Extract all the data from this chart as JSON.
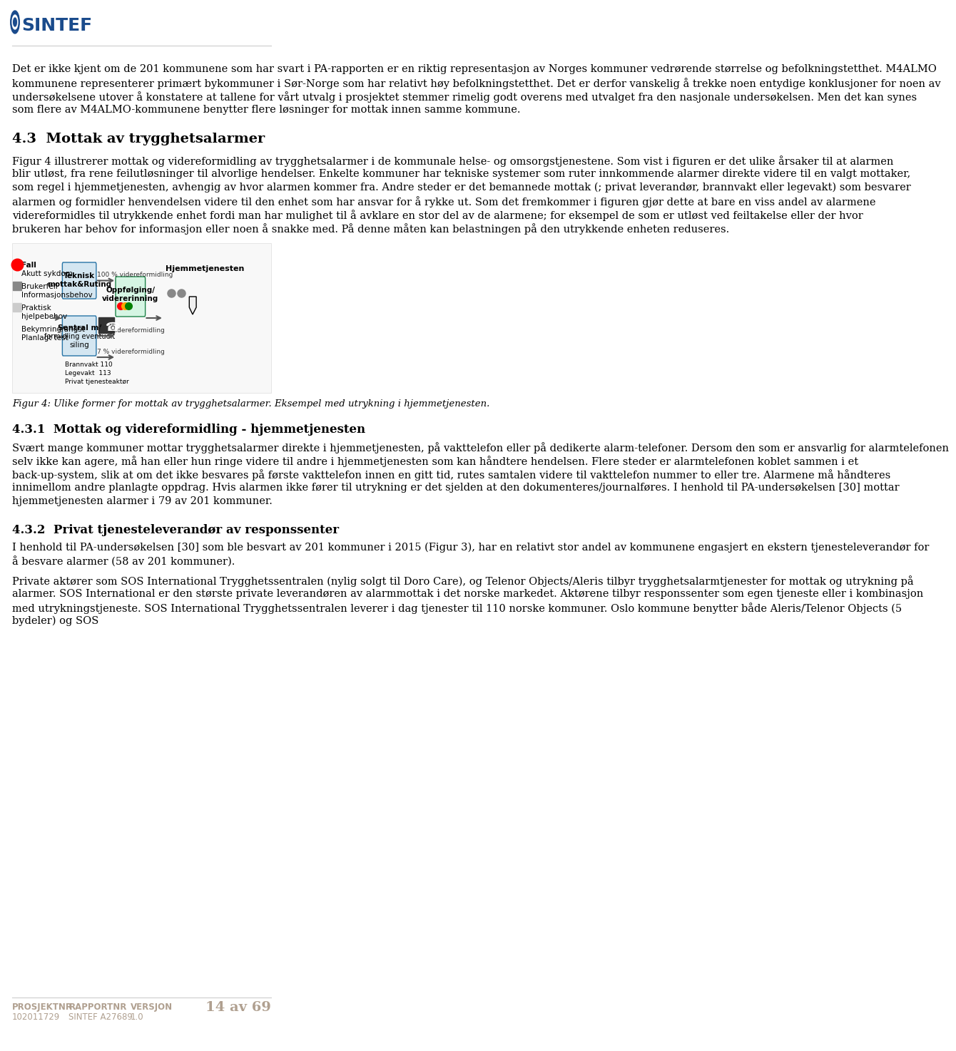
{
  "page_bg": "#ffffff",
  "sintef_color": "#1a4b8c",
  "text_color": "#000000",
  "footer_text_color": "#b0a090",
  "header_logo_text": "SINTEF",
  "footer_left_label": "PROSJEKTNR",
  "footer_left_value": "102011729",
  "footer_mid_label": "RAPPORTNR",
  "footer_mid_value": "SINTEF A27689",
  "footer_right_label": "VERSJON",
  "footer_right_value": "1.0",
  "footer_page": "14 av 69",
  "paragraph1": "Det er ikke kjent om de 201 kommunene som har svart i PA-rapporten er en riktig representasjon av Norges kommuner vedrørende størrelse og befolkningstetthet. M4ALMO kommunene representerer primært bykommuner i Sør-Norge som har relativt høy befolkningstetthet. Det er derfor vanskelig å trekke noen entydige konklusjoner for noen av undersøkelsene utover å konstatere at tallene for vårt utvalg i prosjektet stemmer rimelig godt overens med utvalget fra den nasjonale undersøkelsen. Men det kan synes som flere av M4ALMO-kommunene benytter flere løsninger for mottak innen samme kommune.",
  "heading2": "4.3  Mottak av trygghetsalarmer",
  "paragraph2": "Figur 4 illustrerer mottak og videreformidling av trygghetsalarmer i de kommunale helse- og omsorgstjenestene. Som vist i figuren er det ulike årsaker til at alarmen blir utløst, fra rene feilutløsninger til alvorlige hendelser. Enkelte kommuner har tekniske systemer som ruter innkommende alarmer direkte videre til en valgt mottaker, som regel i hjemmetjenesten, avhengig av hvor alarmen kommer fra. Andre steder er det bemannede mottak (; privat leverandør, brannvakt eller legevakt) som besvarer alarmen og formidler henvendelsen videre til den enhet som har ansvar for å rykke ut. Som det fremkommer i figuren gjør dette at bare en viss andel av alarmene videreformidles til utrykkende enhet fordi man har mulighet til å avklare en stor del av de alarmene; for eksempel de som er utløst ved feiltakelse eller der hvor brukeren har behov for informasjon eller noen å snakke med. På denne måten kan belastningen på den utrykkende enheten reduseres.",
  "fig_caption": "Figur 4: Ulike former for mottak av trygghetsalarmer. Eksempel med utrykning i hjemmetjenesten.",
  "heading3": "4.3.1  Mottak og videreformidling - hjemmetjenesten",
  "paragraph3": "Svært mange kommuner mottar trygghetsalarmer direkte i hjemmetjenesten, på vakttelefon eller på dedikerte alarm-telefoner. Dersom den som er ansvarlig for alarmtelefonen selv ikke kan agere, må han eller hun ringe videre til andre i hjemmetjenesten som kan håndtere hendelsen. Flere steder er alarmtelefonen koblet sammen i et back-up-system, slik at om det ikke besvares på første vakttelefon innen en gitt tid, rutes samtalen videre til vakttelefon nummer to eller tre. Alarmene må håndteres innimellom andre planlagte oppdrag. Hvis alarmen ikke fører til utrykning er det sjelden at den dokumenteres/journalføres. I henhold til PA-undersøkelsen [30] mottar hjemmetjenesten alarmer i 79 av 201 kommuner.",
  "heading4": "4.3.2  Privat tjenesteleverandør av responssenter",
  "paragraph4": "I henhold til PA-undersøkelsen [30] som ble besvart av 201 kommuner i 2015 (Figur 3), har en relativt stor andel av kommunene engasjert en ekstern tjenesteleverandør for å besvare alarmer (58 av 201 kommuner).",
  "paragraph5": "Private aktører som SOS International Trygghetssentralen (nylig solgt til Doro Care), og Telenor Objects/Aleris tilbyr trygghetsalarmtjenester for mottak og utrykning på alarmer. SOS International er den største private leverandøren av alarmmottak i det norske markedet. Aktørene tilbyr responssenter som egen tjeneste eller i kombinasjon med utrykningstjeneste. SOS International Trygghetssentralen leverer i dag tjenester til 110 norske kommuner. Oslo kommune benytter både Aleris/Telenor Objects (5 bydeler) og SOS"
}
